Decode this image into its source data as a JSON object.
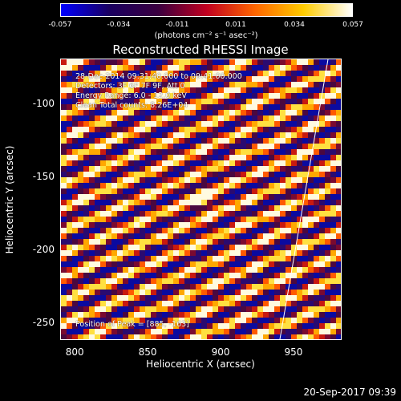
{
  "colorbar": {
    "ticks": [
      "-0.057",
      "-0.034",
      "-0.011",
      "0.011",
      "0.034",
      "0.057"
    ],
    "units_label": "(photons cm⁻² s⁻¹ asec⁻²)",
    "colors": [
      "#0000ff",
      "#1a0060",
      "#3a0040",
      "#c00020",
      "#ff6600",
      "#ffcc00",
      "#ffffff"
    ]
  },
  "chart_data": {
    "type": "heatmap",
    "title": "Reconstructed RHESSI Image",
    "xlabel": "Heliocentric X (arcsec)",
    "ylabel": "Heliocentric Y (arcsec)",
    "xlim": [
      790,
      983
    ],
    "ylim": [
      -262,
      -69
    ],
    "xticks": [
      "800",
      "850",
      "900",
      "950"
    ],
    "yticks": [
      "-100",
      "-150",
      "-200",
      "-250"
    ],
    "zlim": [
      -0.057,
      0.057
    ],
    "peak_position": [
      885,
      -163
    ]
  },
  "annotations": {
    "line1": "28-Dec-2014 09:31:40.000 to 09:41:00.000",
    "line2": "Detectors: 3F 6F 7F 9F, Att 0",
    "line3": "Energy Range: 6.0 - 12.0 keV",
    "line4": "Clean    Total counts: 8.26E+04",
    "peak": "Position of Peak = [885, -163]"
  },
  "footer": {
    "timestamp": "20-Sep-2017 09:39"
  }
}
